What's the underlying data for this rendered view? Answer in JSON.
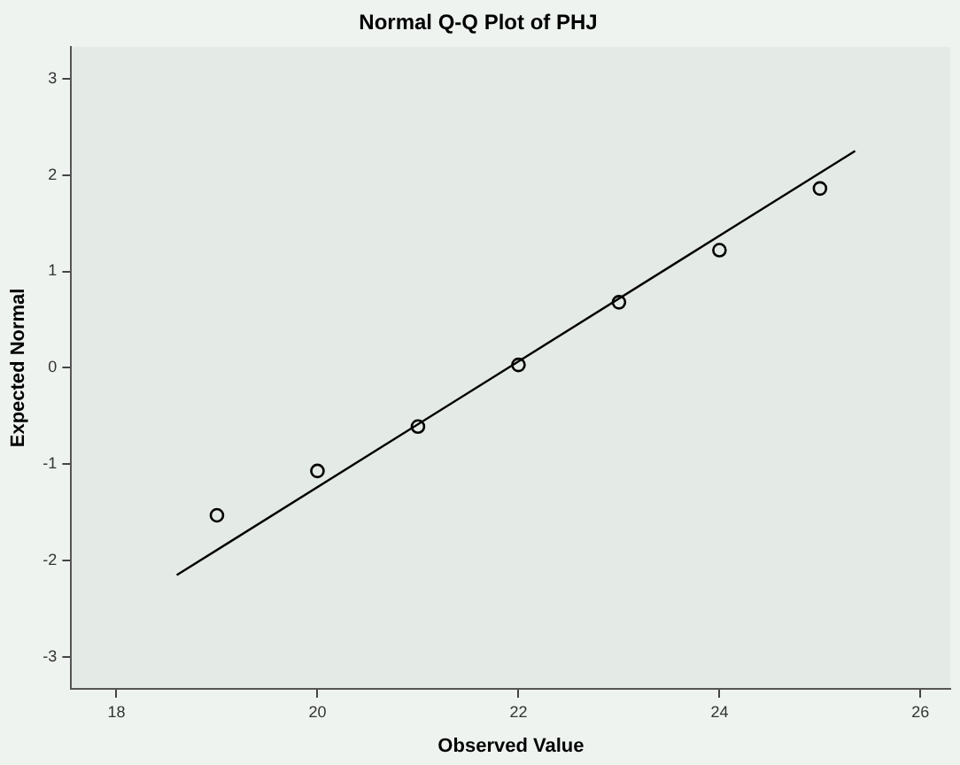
{
  "chart_data": {
    "type": "scatter",
    "title": "Normal Q-Q Plot of PHJ",
    "xlabel": "Observed Value",
    "ylabel": "Expected Normal",
    "x": [
      19,
      20,
      21,
      22,
      23,
      24,
      25
    ],
    "series": [
      {
        "color": "#000000",
        "marker": "circle",
        "values": [
          -1.53,
          -1.07,
          -0.61,
          0.03,
          0.68,
          1.22,
          1.86
        ]
      },
      {
        "type": "line",
        "color": "#000000",
        "marker": "none",
        "x": [
          18.6,
          25.35
        ],
        "values": [
          -2.15,
          2.25
        ]
      }
    ],
    "xlim": [
      17.55,
      26.3
    ],
    "xticks": [
      18,
      20,
      22,
      24,
      26
    ],
    "ylim": [
      -3.33,
      3.33
    ],
    "yticks": [
      -3,
      -2,
      -1,
      0,
      1,
      2,
      3
    ],
    "grid": false,
    "legend": false
  }
}
